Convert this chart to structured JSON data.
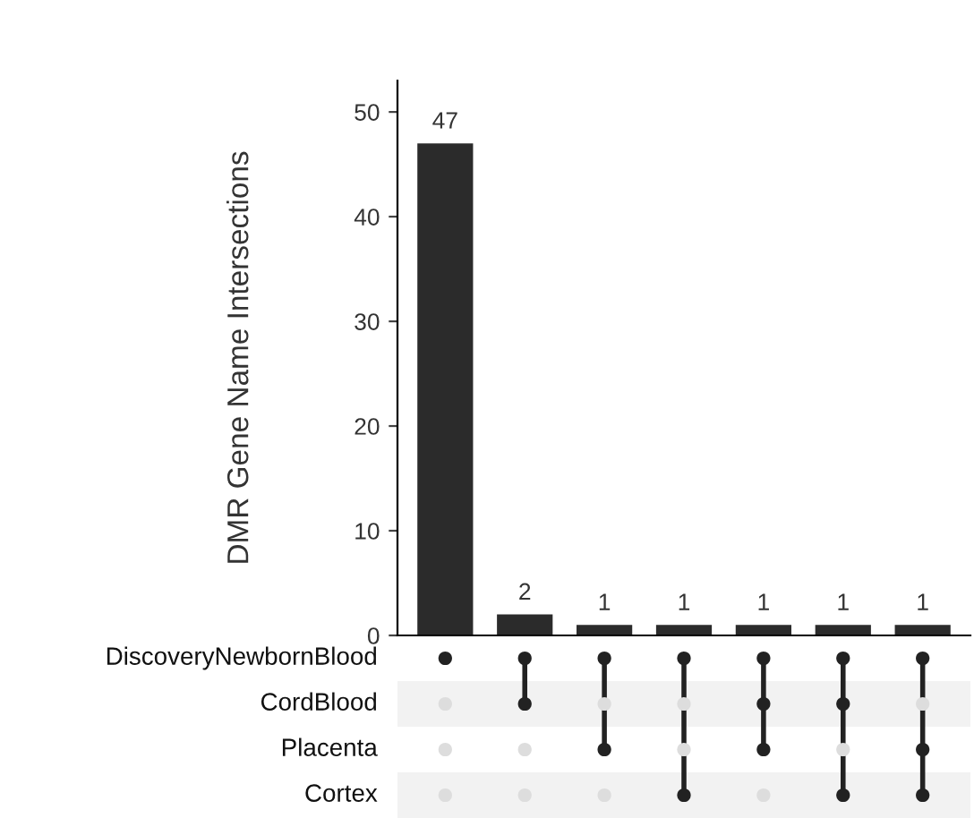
{
  "chart_data": {
    "type": "bar",
    "ylabel": "DMR Gene Name Intersections",
    "categories": [
      null,
      null,
      null,
      null,
      null,
      null,
      null
    ],
    "values": [
      47,
      2,
      1,
      1,
      1,
      1,
      1
    ],
    "color": "#2b2b2b",
    "data_labels": true,
    "ylim": [
      0,
      53
    ],
    "yticks": [
      0,
      10,
      20,
      30,
      40,
      50
    ],
    "grid": false,
    "tick_labels": "y",
    "annotations": [
      "DiscoveryNewbornBlood",
      "CordBlood",
      "Placenta",
      "Cortex"
    ]
  }
}
